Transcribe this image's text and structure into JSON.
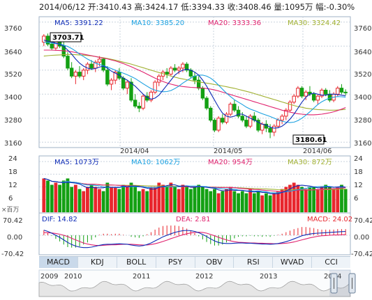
{
  "header": {
    "date": "2014/06/12",
    "open_label": "开:",
    "open": "3410.43",
    "high_label": "高:",
    "high": "3424.17",
    "low_label": "低:",
    "low": "3394.33",
    "close_label": "收:",
    "close": "3408.46",
    "vol_label": "量:",
    "volume": "1095万",
    "chg_label": "幅:",
    "change": "-0.30%"
  },
  "colors": {
    "up": "#e8262d",
    "down": "#13a013",
    "ma5": "#0d2bb6",
    "ma10": "#1aa0e0",
    "ma20": "#e0226e",
    "ma30": "#a0b030",
    "grid": "#c9d3de",
    "border": "#9fb2c6"
  },
  "chart_data": [
    {
      "type": "candlestick",
      "title": "",
      "ylim": [
        3140,
        3780
      ],
      "y_ticks": [
        "3760",
        "3640",
        "3520",
        "3400",
        "3280",
        "3160"
      ],
      "x_labels": [
        "2014/04",
        "2014/05",
        "2014/06"
      ],
      "ma_legend": [
        {
          "label": "MA5: 3391.22",
          "color": "#0d2bb6"
        },
        {
          "label": "MA10: 3385.20",
          "color": "#1aa0e0"
        },
        {
          "label": "MA20: 3333.36",
          "color": "#e0226e"
        },
        {
          "label": "MA30: 3324.42",
          "color": "#a0b030"
        }
      ],
      "annotations": [
        "3703.71",
        "3180.61"
      ],
      "candles": [
        [
          3660,
          3700,
          3640,
          3690
        ],
        [
          3690,
          3703,
          3640,
          3650
        ],
        [
          3650,
          3670,
          3620,
          3630
        ],
        [
          3630,
          3680,
          3620,
          3670
        ],
        [
          3670,
          3690,
          3630,
          3640
        ],
        [
          3640,
          3660,
          3580,
          3590
        ],
        [
          3590,
          3610,
          3520,
          3530
        ],
        [
          3530,
          3560,
          3480,
          3490
        ],
        [
          3490,
          3520,
          3450,
          3510
        ],
        [
          3510,
          3540,
          3480,
          3490
        ],
        [
          3490,
          3530,
          3470,
          3520
        ],
        [
          3520,
          3560,
          3500,
          3550
        ],
        [
          3550,
          3570,
          3520,
          3530
        ],
        [
          3530,
          3570,
          3510,
          3560
        ],
        [
          3560,
          3590,
          3540,
          3575
        ],
        [
          3575,
          3580,
          3510,
          3520
        ],
        [
          3520,
          3540,
          3440,
          3450
        ],
        [
          3450,
          3480,
          3420,
          3470
        ],
        [
          3470,
          3520,
          3450,
          3510
        ],
        [
          3510,
          3530,
          3470,
          3480
        ],
        [
          3480,
          3490,
          3420,
          3430
        ],
        [
          3430,
          3470,
          3400,
          3460
        ],
        [
          3460,
          3480,
          3360,
          3370
        ],
        [
          3370,
          3400,
          3330,
          3340
        ],
        [
          3340,
          3360,
          3310,
          3330
        ],
        [
          3330,
          3400,
          3320,
          3390
        ],
        [
          3390,
          3410,
          3360,
          3370
        ],
        [
          3370,
          3420,
          3360,
          3410
        ],
        [
          3410,
          3470,
          3400,
          3460
        ],
        [
          3460,
          3500,
          3440,
          3490
        ],
        [
          3490,
          3520,
          3470,
          3510
        ],
        [
          3510,
          3530,
          3480,
          3500
        ],
        [
          3500,
          3540,
          3490,
          3530
        ],
        [
          3530,
          3550,
          3510,
          3520
        ],
        [
          3520,
          3540,
          3500,
          3530
        ],
        [
          3530,
          3560,
          3510,
          3550
        ],
        [
          3550,
          3560,
          3510,
          3520
        ],
        [
          3520,
          3530,
          3480,
          3490
        ],
        [
          3490,
          3510,
          3450,
          3470
        ],
        [
          3470,
          3490,
          3420,
          3430
        ],
        [
          3430,
          3440,
          3370,
          3380
        ],
        [
          3380,
          3390,
          3320,
          3330
        ],
        [
          3330,
          3340,
          3260,
          3270
        ],
        [
          3270,
          3280,
          3210,
          3220
        ],
        [
          3220,
          3290,
          3210,
          3280
        ],
        [
          3280,
          3300,
          3250,
          3260
        ],
        [
          3260,
          3310,
          3250,
          3300
        ],
        [
          3300,
          3360,
          3290,
          3350
        ],
        [
          3350,
          3370,
          3310,
          3320
        ],
        [
          3320,
          3340,
          3280,
          3290
        ],
        [
          3290,
          3310,
          3260,
          3270
        ],
        [
          3270,
          3290,
          3230,
          3240
        ],
        [
          3240,
          3300,
          3230,
          3290
        ],
        [
          3290,
          3310,
          3260,
          3270
        ],
        [
          3270,
          3280,
          3210,
          3220
        ],
        [
          3220,
          3260,
          3200,
          3250
        ],
        [
          3250,
          3270,
          3210,
          3230
        ],
        [
          3230,
          3250,
          3180,
          3210
        ],
        [
          3210,
          3250,
          3190,
          3240
        ],
        [
          3240,
          3280,
          3230,
          3270
        ],
        [
          3270,
          3300,
          3250,
          3290
        ],
        [
          3290,
          3330,
          3270,
          3320
        ],
        [
          3320,
          3370,
          3310,
          3360
        ],
        [
          3360,
          3400,
          3350,
          3390
        ],
        [
          3390,
          3440,
          3380,
          3430
        ],
        [
          3430,
          3440,
          3380,
          3390
        ],
        [
          3390,
          3420,
          3370,
          3410
        ],
        [
          3410,
          3440,
          3390,
          3400
        ],
        [
          3400,
          3410,
          3360,
          3370
        ],
        [
          3370,
          3400,
          3350,
          3390
        ],
        [
          3390,
          3430,
          3380,
          3420
        ],
        [
          3420,
          3430,
          3390,
          3400
        ],
        [
          3400,
          3420,
          3360,
          3370
        ],
        [
          3370,
          3410,
          3360,
          3400
        ],
        [
          3400,
          3440,
          3390,
          3430
        ],
        [
          3430,
          3450,
          3400,
          3410
        ],
        [
          3410,
          3424,
          3394,
          3408
        ]
      ],
      "ma5": [
        3670,
        3665,
        3660,
        3655,
        3650,
        3640,
        3620,
        3600,
        3575,
        3555,
        3540,
        3530,
        3525,
        3528,
        3535,
        3540,
        3530,
        3515,
        3505,
        3495,
        3480,
        3470,
        3455,
        3440,
        3420,
        3400,
        3385,
        3375,
        3380,
        3395,
        3420,
        3445,
        3470,
        3495,
        3510,
        3520,
        3525,
        3520,
        3510,
        3495,
        3470,
        3440,
        3405,
        3370,
        3335,
        3305,
        3290,
        3285,
        3290,
        3300,
        3300,
        3290,
        3280,
        3270,
        3260,
        3250,
        3245,
        3235,
        3230,
        3232,
        3240,
        3255,
        3275,
        3300,
        3330,
        3360,
        3385,
        3400,
        3405,
        3400,
        3395,
        3395,
        3400,
        3400,
        3398,
        3395,
        3391
      ],
      "ma10": [
        3660,
        3658,
        3655,
        3652,
        3650,
        3645,
        3638,
        3628,
        3615,
        3600,
        3588,
        3575,
        3565,
        3555,
        3548,
        3542,
        3535,
        3528,
        3520,
        3512,
        3505,
        3497,
        3488,
        3478,
        3465,
        3452,
        3440,
        3428,
        3420,
        3415,
        3412,
        3413,
        3418,
        3428,
        3440,
        3455,
        3468,
        3480,
        3490,
        3495,
        3495,
        3490,
        3480,
        3465,
        3445,
        3425,
        3405,
        3388,
        3372,
        3360,
        3348,
        3335,
        3325,
        3318,
        3310,
        3302,
        3295,
        3288,
        3280,
        3272,
        3265,
        3260,
        3258,
        3260,
        3268,
        3280,
        3295,
        3312,
        3330,
        3348,
        3362,
        3372,
        3380,
        3385,
        3388,
        3387,
        3385
      ],
      "ma20": [
        3620,
        3620,
        3620,
        3619,
        3618,
        3617,
        3615,
        3612,
        3608,
        3604,
        3600,
        3596,
        3592,
        3588,
        3584,
        3580,
        3576,
        3571,
        3566,
        3560,
        3553,
        3545,
        3537,
        3528,
        3519,
        3510,
        3500,
        3490,
        3480,
        3471,
        3463,
        3456,
        3450,
        3445,
        3441,
        3438,
        3436,
        3434,
        3433,
        3432,
        3430,
        3428,
        3425,
        3421,
        3416,
        3410,
        3404,
        3398,
        3392,
        3386,
        3380,
        3374,
        3368,
        3362,
        3356,
        3350,
        3344,
        3338,
        3332,
        3326,
        3320,
        3315,
        3310,
        3306,
        3302,
        3300,
        3298,
        3297,
        3297,
        3298,
        3300,
        3303,
        3307,
        3312,
        3318,
        3325,
        3333
      ],
      "ma30": [
        3590,
        3592,
        3594,
        3595,
        3596,
        3597,
        3598,
        3598,
        3597,
        3596,
        3595,
        3593,
        3591,
        3588,
        3585,
        3582,
        3578,
        3574,
        3570,
        3565,
        3560,
        3555,
        3550,
        3544,
        3538,
        3532,
        3526,
        3520,
        3514,
        3508,
        3502,
        3496,
        3490,
        3485,
        3480,
        3476,
        3472,
        3468,
        3464,
        3461,
        3458,
        3455,
        3452,
        3448,
        3445,
        3441,
        3437,
        3433,
        3429,
        3424,
        3419,
        3414,
        3409,
        3403,
        3397,
        3391,
        3385,
        3379,
        3373,
        3367,
        3361,
        3355,
        3349,
        3343,
        3338,
        3334,
        3330,
        3327,
        3325,
        3323,
        3322,
        3321,
        3320,
        3320,
        3321,
        3322,
        3324
      ]
    },
    {
      "type": "bar",
      "title": "",
      "y_ticks": [
        "24",
        "18",
        "12",
        "6"
      ],
      "unit_label": "×百万",
      "ma_legend": [
        {
          "label": "MA5: 1073万",
          "color": "#0d2bb6"
        },
        {
          "label": "MA10: 1062万",
          "color": "#1aa0e0"
        },
        {
          "label": "MA20: 954万",
          "color": "#e0226e"
        },
        {
          "label": "MA30: 872万",
          "color": "#a0b030"
        }
      ],
      "ylim": [
        0,
        26
      ],
      "values": [
        16,
        15,
        13,
        14,
        13,
        15,
        16,
        12,
        13,
        11,
        10,
        12,
        13,
        12,
        11,
        10,
        14,
        12,
        12,
        11,
        13,
        12,
        14,
        12,
        10,
        11,
        10,
        12,
        12,
        14,
        13,
        12,
        14,
        12,
        11,
        13,
        12,
        11,
        12,
        13,
        12,
        11,
        10,
        11,
        9,
        10,
        11,
        12,
        10,
        9,
        10,
        9,
        11,
        9,
        10,
        8,
        9,
        8,
        9,
        10,
        11,
        12,
        13,
        14,
        13,
        12,
        11,
        12,
        12,
        11,
        12,
        13,
        12,
        11,
        12,
        13,
        11
      ]
    },
    {
      "type": "line",
      "title": "",
      "y_ticks": [
        "70.42",
        "0.00",
        "-70.42"
      ],
      "legend": [
        {
          "label": "DIF: 14.82",
          "color": "#0d2bb6"
        },
        {
          "label": "DEA: 2.81",
          "color": "#e0226e"
        },
        {
          "label": "MACD: 24.02",
          "color": "#e8262d"
        }
      ],
      "ylim": [
        -70.42,
        70.42
      ],
      "dif": [
        20,
        15,
        8,
        0,
        -8,
        -18,
        -28,
        -36,
        -42,
        -46,
        -48,
        -48,
        -46,
        -43,
        -39,
        -36,
        -35,
        -35,
        -34,
        -33,
        -34,
        -35,
        -38,
        -40,
        -42,
        -40,
        -36,
        -30,
        -22,
        -14,
        -6,
        0,
        6,
        11,
        15,
        18,
        19,
        18,
        15,
        10,
        3,
        -5,
        -14,
        -22,
        -28,
        -31,
        -32,
        -32,
        -31,
        -30,
        -30,
        -31,
        -31,
        -32,
        -33,
        -34,
        -34,
        -35,
        -34,
        -32,
        -29,
        -25,
        -20,
        -14,
        -8,
        -2,
        2,
        5,
        7,
        8,
        9,
        10,
        11,
        12,
        13,
        14,
        15
      ],
      "dea": [
        10,
        10,
        9,
        7,
        4,
        0,
        -5,
        -12,
        -18,
        -24,
        -30,
        -34,
        -37,
        -39,
        -40,
        -39,
        -38,
        -37,
        -37,
        -36,
        -35,
        -35,
        -35,
        -36,
        -37,
        -38,
        -38,
        -36,
        -33,
        -29,
        -24,
        -19,
        -13,
        -8,
        -3,
        2,
        6,
        9,
        11,
        12,
        11,
        8,
        3,
        -2,
        -8,
        -13,
        -18,
        -22,
        -25,
        -27,
        -28,
        -29,
        -30,
        -30,
        -31,
        -31,
        -32,
        -32,
        -33,
        -33,
        -32,
        -31,
        -29,
        -26,
        -22,
        -18,
        -14,
        -10,
        -7,
        -4,
        -2,
        -1,
        0,
        1,
        1,
        2,
        3
      ],
      "macd": [
        20,
        10,
        -2,
        -14,
        -24,
        -36,
        -46,
        -48,
        -48,
        -44,
        -36,
        -28,
        -18,
        -8,
        2,
        6,
        6,
        4,
        6,
        6,
        2,
        0,
        -6,
        -8,
        -10,
        -4,
        4,
        12,
        22,
        30,
        36,
        38,
        38,
        38,
        36,
        32,
        26,
        18,
        8,
        -4,
        -16,
        -26,
        -34,
        -40,
        -40,
        -36,
        -28,
        -20,
        -12,
        -6,
        -4,
        -4,
        -2,
        -4,
        -4,
        -6,
        -4,
        -6,
        -2,
        2,
        6,
        12,
        18,
        24,
        28,
        32,
        32,
        30,
        28,
        24,
        22,
        22,
        22,
        22,
        24,
        24,
        24
      ]
    }
  ],
  "tabs": [
    "MACD",
    "KDJ",
    "BOLL",
    "PSY",
    "OBV",
    "RSI",
    "WVAD",
    "CCI"
  ],
  "timeline": {
    "years": [
      "2009",
      "2010",
      "2011",
      "2012",
      "2013",
      "2014"
    ]
  }
}
